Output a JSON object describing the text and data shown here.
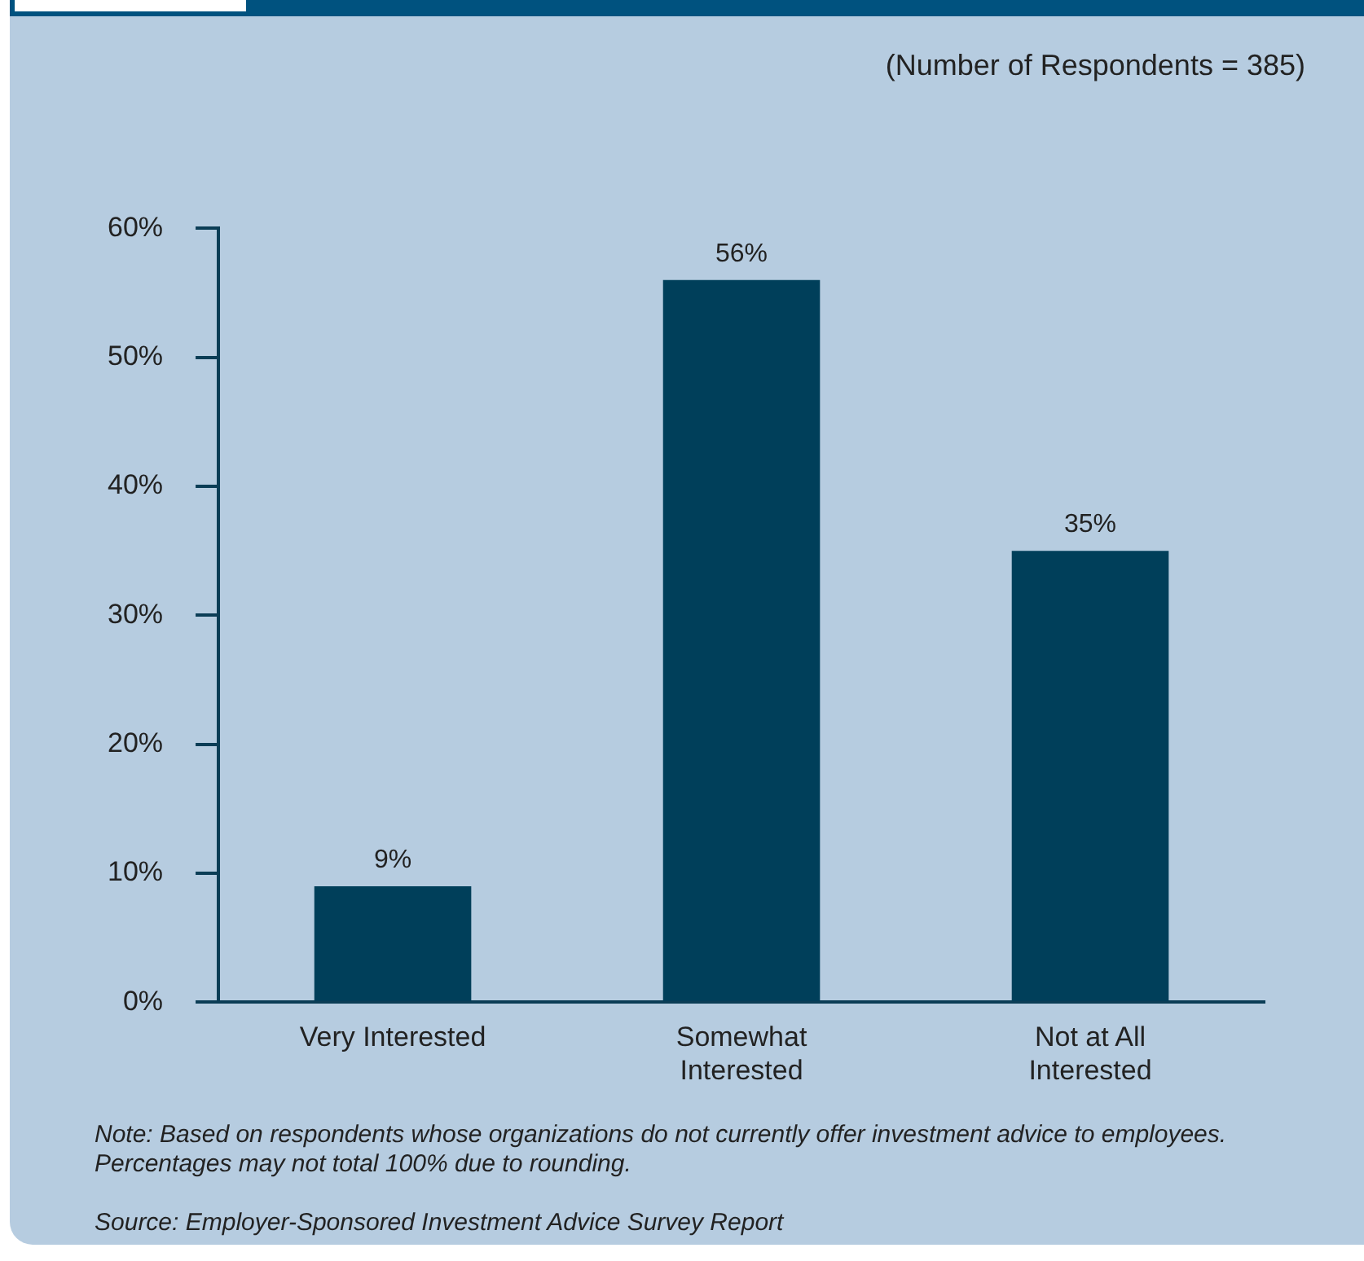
{
  "chart_data": {
    "type": "bar",
    "subtitle": "(Number of Respondents = 385)",
    "categories": [
      "Very Interested",
      "Somewhat\nInterested",
      "Not at All\nInterested"
    ],
    "values": [
      9,
      56,
      35
    ],
    "color": "#003f5a",
    "value_labels": [
      "9%",
      "56%",
      "35%"
    ],
    "ylim": [
      0,
      60
    ],
    "yticks": [
      {
        "value": 0,
        "label": "0%"
      },
      {
        "value": 10,
        "label": "10%"
      },
      {
        "value": 20,
        "label": "20%"
      },
      {
        "value": 30,
        "label": "30%"
      },
      {
        "value": 40,
        "label": "40%"
      },
      {
        "value": 50,
        "label": "50%"
      },
      {
        "value": 60,
        "label": "60%"
      }
    ],
    "grid": false,
    "legend": false,
    "annotations": [
      "Note: Based on respondents whose organizations do not currently offer investment advice to employees. Percentages may not total 100% due to rounding.",
      "Source: Employer-Sponsored Investment Advice Survey Report"
    ]
  }
}
